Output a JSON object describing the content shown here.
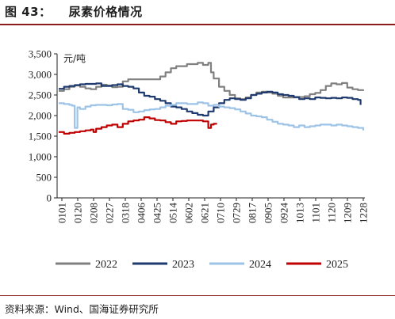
{
  "figure": {
    "number": "图 43：",
    "title": "尿素价格情况",
    "source": "资料来源：Wind、国海证券研究所"
  },
  "chart_data": {
    "type": "line",
    "ylabel": "元/吨",
    "ylim": [
      0,
      3500
    ],
    "yticks": [
      "0",
      "500",
      "1,000",
      "1,500",
      "2,000",
      "2,500",
      "3,000",
      "3,500"
    ],
    "xlabels": [
      "0101",
      "0120",
      "0208",
      "0227",
      "0318",
      "0406",
      "0425",
      "0514",
      "0602",
      "0621",
      "0710",
      "0729",
      "0817",
      "0905",
      "0924",
      "1013",
      "1101",
      "1120",
      "1209",
      "1228"
    ],
    "legend_position": "bottom",
    "grid": false,
    "series": [
      {
        "name": "2022",
        "color": "#808080",
        "points": [
          [
            0,
            2600
          ],
          [
            2,
            2640
          ],
          [
            4,
            2700
          ],
          [
            6,
            2730
          ],
          [
            8,
            2700
          ],
          [
            10,
            2660
          ],
          [
            12,
            2640
          ],
          [
            14,
            2700
          ],
          [
            16,
            2750
          ],
          [
            18,
            2730
          ],
          [
            20,
            2690
          ],
          [
            22,
            2700
          ],
          [
            24,
            2830
          ],
          [
            26,
            2880
          ],
          [
            30,
            2880
          ],
          [
            34,
            2880
          ],
          [
            38,
            2950
          ],
          [
            40,
            3050
          ],
          [
            42,
            3150
          ],
          [
            44,
            3200
          ],
          [
            48,
            3250
          ],
          [
            52,
            3280
          ],
          [
            54,
            3230
          ],
          [
            56,
            3280
          ],
          [
            57,
            3050
          ],
          [
            58,
            2900
          ],
          [
            60,
            2700
          ],
          [
            62,
            2600
          ],
          [
            64,
            2500
          ],
          [
            66,
            2420
          ],
          [
            68,
            2400
          ],
          [
            70,
            2440
          ],
          [
            72,
            2500
          ],
          [
            74,
            2560
          ],
          [
            76,
            2580
          ],
          [
            78,
            2560
          ],
          [
            80,
            2530
          ],
          [
            82,
            2480
          ],
          [
            84,
            2440
          ],
          [
            86,
            2440
          ],
          [
            88,
            2440
          ],
          [
            90,
            2450
          ],
          [
            92,
            2470
          ],
          [
            94,
            2520
          ],
          [
            96,
            2550
          ],
          [
            98,
            2620
          ],
          [
            100,
            2720
          ],
          [
            102,
            2780
          ],
          [
            104,
            2760
          ],
          [
            106,
            2790
          ],
          [
            108,
            2680
          ],
          [
            110,
            2640
          ],
          [
            112,
            2620
          ],
          [
            114,
            2600
          ]
        ]
      },
      {
        "name": "2023",
        "color": "#1f3a6e",
        "points": [
          [
            0,
            2650
          ],
          [
            2,
            2700
          ],
          [
            4,
            2720
          ],
          [
            6,
            2740
          ],
          [
            8,
            2760
          ],
          [
            10,
            2770
          ],
          [
            12,
            2770
          ],
          [
            14,
            2780
          ],
          [
            16,
            2720
          ],
          [
            18,
            2720
          ],
          [
            20,
            2740
          ],
          [
            22,
            2760
          ],
          [
            24,
            2720
          ],
          [
            26,
            2700
          ],
          [
            28,
            2660
          ],
          [
            30,
            2560
          ],
          [
            32,
            2480
          ],
          [
            34,
            2460
          ],
          [
            36,
            2400
          ],
          [
            38,
            2360
          ],
          [
            40,
            2300
          ],
          [
            42,
            2220
          ],
          [
            44,
            2200
          ],
          [
            46,
            2160
          ],
          [
            48,
            2100
          ],
          [
            50,
            2060
          ],
          [
            52,
            2020
          ],
          [
            54,
            2000
          ],
          [
            56,
            2100
          ],
          [
            58,
            2200
          ],
          [
            60,
            2300
          ],
          [
            62,
            2380
          ],
          [
            64,
            2420
          ],
          [
            66,
            2400
          ],
          [
            68,
            2380
          ],
          [
            70,
            2420
          ],
          [
            72,
            2500
          ],
          [
            74,
            2530
          ],
          [
            76,
            2560
          ],
          [
            78,
            2580
          ],
          [
            80,
            2560
          ],
          [
            82,
            2520
          ],
          [
            84,
            2500
          ],
          [
            86,
            2480
          ],
          [
            88,
            2450
          ],
          [
            90,
            2400
          ],
          [
            92,
            2420
          ],
          [
            94,
            2400
          ],
          [
            96,
            2440
          ],
          [
            98,
            2430
          ],
          [
            100,
            2420
          ],
          [
            102,
            2430
          ],
          [
            104,
            2420
          ],
          [
            106,
            2440
          ],
          [
            108,
            2430
          ],
          [
            110,
            2400
          ],
          [
            112,
            2380
          ],
          [
            113,
            2260
          ]
        ]
      },
      {
        "name": "2024",
        "color": "#9dc3e6",
        "points": [
          [
            0,
            2300
          ],
          [
            2,
            2280
          ],
          [
            4,
            2260
          ],
          [
            5,
            2240
          ],
          [
            6,
            1700
          ],
          [
            7,
            2200
          ],
          [
            8,
            2160
          ],
          [
            10,
            2220
          ],
          [
            12,
            2250
          ],
          [
            14,
            2260
          ],
          [
            16,
            2260
          ],
          [
            18,
            2250
          ],
          [
            20,
            2270
          ],
          [
            22,
            2280
          ],
          [
            24,
            2160
          ],
          [
            26,
            2140
          ],
          [
            28,
            2080
          ],
          [
            30,
            2100
          ],
          [
            32,
            2130
          ],
          [
            34,
            2150
          ],
          [
            36,
            2160
          ],
          [
            38,
            2200
          ],
          [
            40,
            2240
          ],
          [
            42,
            2260
          ],
          [
            44,
            2300
          ],
          [
            46,
            2300
          ],
          [
            48,
            2280
          ],
          [
            50,
            2280
          ],
          [
            52,
            2320
          ],
          [
            54,
            2300
          ],
          [
            56,
            2240
          ],
          [
            58,
            2260
          ],
          [
            60,
            2220
          ],
          [
            62,
            2200
          ],
          [
            64,
            2180
          ],
          [
            66,
            2150
          ],
          [
            68,
            2100
          ],
          [
            70,
            2050
          ],
          [
            72,
            2000
          ],
          [
            74,
            1980
          ],
          [
            76,
            1960
          ],
          [
            78,
            1900
          ],
          [
            80,
            1850
          ],
          [
            82,
            1800
          ],
          [
            84,
            1780
          ],
          [
            86,
            1760
          ],
          [
            88,
            1720
          ],
          [
            90,
            1760
          ],
          [
            92,
            1720
          ],
          [
            94,
            1740
          ],
          [
            96,
            1760
          ],
          [
            98,
            1780
          ],
          [
            100,
            1780
          ],
          [
            102,
            1760
          ],
          [
            104,
            1780
          ],
          [
            106,
            1760
          ],
          [
            108,
            1740
          ],
          [
            110,
            1720
          ],
          [
            112,
            1700
          ],
          [
            114,
            1640
          ]
        ]
      },
      {
        "name": "2025",
        "color": "#c00000",
        "points": [
          [
            0,
            1600
          ],
          [
            2,
            1560
          ],
          [
            4,
            1580
          ],
          [
            6,
            1600
          ],
          [
            8,
            1620
          ],
          [
            10,
            1640
          ],
          [
            12,
            1660
          ],
          [
            13,
            1600
          ],
          [
            14,
            1680
          ],
          [
            16,
            1720
          ],
          [
            18,
            1760
          ],
          [
            20,
            1780
          ],
          [
            22,
            1720
          ],
          [
            24,
            1800
          ],
          [
            26,
            1860
          ],
          [
            28,
            1880
          ],
          [
            30,
            1900
          ],
          [
            32,
            1960
          ],
          [
            34,
            1930
          ],
          [
            36,
            1890
          ],
          [
            38,
            1880
          ],
          [
            40,
            1840
          ],
          [
            42,
            1800
          ],
          [
            44,
            1860
          ],
          [
            46,
            1870
          ],
          [
            48,
            1880
          ],
          [
            50,
            1880
          ],
          [
            52,
            1880
          ],
          [
            54,
            1860
          ],
          [
            56,
            1700
          ],
          [
            57,
            1780
          ],
          [
            58,
            1800
          ],
          [
            59,
            1820
          ]
        ]
      }
    ]
  }
}
